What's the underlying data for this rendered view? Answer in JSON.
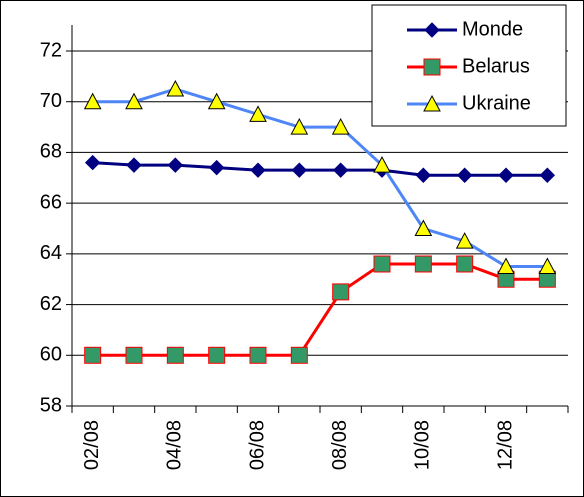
{
  "chart_data": {
    "type": "line",
    "categories": [
      "02/08",
      null,
      "04/08",
      null,
      "06/08",
      null,
      "08/08",
      null,
      "10/08",
      null,
      "12/08",
      null
    ],
    "series": [
      {
        "name": "Monde",
        "color": "#000080",
        "marker": "diamond",
        "marker_color": "#000080",
        "values": [
          67.6,
          67.5,
          67.5,
          67.4,
          67.3,
          67.3,
          67.3,
          67.3,
          67.1,
          67.1,
          67.1,
          67.1
        ]
      },
      {
        "name": "Belarus",
        "color": "#ff0000",
        "marker": "square",
        "marker_color": "#339966",
        "values": [
          60,
          60,
          60,
          60,
          60,
          60,
          62.5,
          63.6,
          63.6,
          63.6,
          63.0,
          63.0
        ]
      },
      {
        "name": "Ukraine",
        "color": "#4f86f7",
        "marker": "triangle",
        "marker_color": "#ffff00",
        "values": [
          70,
          70,
          70.5,
          70,
          69.5,
          69,
          69,
          67.5,
          65,
          64.5,
          63.5,
          63.5
        ]
      }
    ],
    "ylim": [
      58,
      72
    ],
    "yticks": [
      58,
      60,
      62,
      64,
      66,
      68,
      70,
      72
    ],
    "grid": true,
    "legend": "top-right"
  }
}
